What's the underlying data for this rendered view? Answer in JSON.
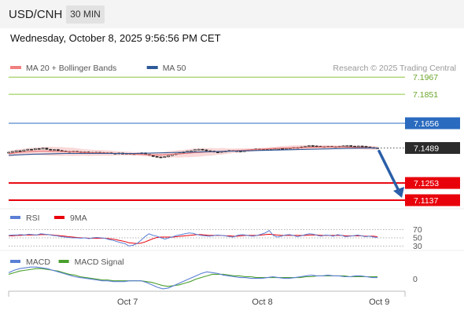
{
  "header": {
    "symbol": "USD/CNH",
    "timeframe": "30 MIN",
    "datetime": "Wednesday, October 8, 2025 9:56:56 PM CET"
  },
  "chart_data": [
    {
      "type": "line",
      "title": "USD/CNH price",
      "legend": [
        {
          "name": "MA 20 + Bollinger Bands",
          "color": "#f08080"
        },
        {
          "name": "MA 50",
          "color": "#2e5a9a"
        }
      ],
      "copyright": "Research © 2025 Trading Central",
      "ylim": [
        7.11,
        7.2
      ],
      "levels": [
        {
          "label": "7.1967",
          "value": 7.1967,
          "kind": "resistance",
          "color": "#8cc63f"
        },
        {
          "label": "7.1851",
          "value": 7.1851,
          "kind": "resistance",
          "color": "#8cc63f"
        },
        {
          "label": "7.1656",
          "value": 7.1656,
          "kind": "pivot",
          "color": "#2a6bbf"
        },
        {
          "label": "7.1489",
          "value": 7.1489,
          "kind": "last",
          "color": "#333333"
        },
        {
          "label": "7.1253",
          "value": 7.1253,
          "kind": "support",
          "color": "#e8000b"
        },
        {
          "label": "7.1137",
          "value": 7.1137,
          "kind": "support",
          "color": "#e8000b"
        }
      ],
      "price_closes": [
        7.146,
        7.1465,
        7.147,
        7.1468,
        7.1475,
        7.148,
        7.1478,
        7.1485,
        7.1482,
        7.1488,
        7.148,
        7.1476,
        7.1478,
        7.1472,
        7.1468,
        7.1465,
        7.1462,
        7.1466,
        7.1463,
        7.146,
        7.1462,
        7.1459,
        7.1456,
        7.146,
        7.1458,
        7.1455,
        7.1457,
        7.1453,
        7.145,
        7.1455,
        7.1448,
        7.1452,
        7.145,
        7.1448,
        7.1452,
        7.1456,
        7.1446,
        7.144,
        7.1432,
        7.1428,
        7.1425,
        7.143,
        7.1438,
        7.1445,
        7.145,
        7.1456,
        7.1462,
        7.1468,
        7.147,
        7.1478,
        7.148,
        7.1476,
        7.147,
        7.1468,
        7.1462,
        7.146,
        7.1465,
        7.1468,
        7.1472,
        7.147,
        7.1468,
        7.1465,
        7.147,
        7.1475,
        7.1478,
        7.1482,
        7.148,
        7.1478,
        7.1476,
        7.1479,
        7.1482,
        7.1485,
        7.148,
        7.1484,
        7.1488,
        7.1492,
        7.149,
        7.1496,
        7.15,
        7.1505,
        7.1502,
        7.15,
        7.1498,
        7.1496,
        7.15,
        7.1498,
        7.1495,
        7.15,
        7.1503,
        7.1505,
        7.1501,
        7.1498,
        7.1502,
        7.15,
        7.1496,
        7.1492,
        7.149,
        7.1489
      ],
      "ma20": [
        7.145,
        7.1455,
        7.146,
        7.1462,
        7.1465,
        7.1467,
        7.1468,
        7.1468,
        7.1467,
        7.1466,
        7.1465,
        7.1464,
        7.1463,
        7.1461,
        7.1459,
        7.1457,
        7.1456,
        7.1456,
        7.1455,
        7.1454,
        7.1453,
        7.1452,
        7.1451,
        7.145,
        7.1448,
        7.1446,
        7.1444,
        7.1442,
        7.1442,
        7.1443,
        7.1445,
        7.1448,
        7.145,
        7.1452,
        7.1455,
        7.1458,
        7.146,
        7.1462,
        7.1463,
        7.1465,
        7.1467,
        7.1468,
        7.147,
        7.1472,
        7.1474,
        7.1476,
        7.1478,
        7.148,
        7.1482,
        7.1484,
        7.1486,
        7.1488,
        7.1489,
        7.149,
        7.1491,
        7.1492,
        7.1493,
        7.1494,
        7.1495,
        7.1496,
        7.1496,
        7.1496,
        7.1496,
        7.1495,
        7.1494,
        7.1493,
        7.1492,
        7.1491,
        7.149,
        7.1489
      ],
      "ma50": [
        7.144,
        7.1442,
        7.1444,
        7.1446,
        7.1447,
        7.1448,
        7.1449,
        7.145,
        7.1451,
        7.1452,
        7.1452,
        7.1452,
        7.1452,
        7.1452,
        7.1452,
        7.1452,
        7.1452,
        7.1452,
        7.1452,
        7.1452,
        7.1452,
        7.1453,
        7.1454,
        7.1455,
        7.1456,
        7.1457,
        7.1458,
        7.1459,
        7.146,
        7.1461,
        7.1462,
        7.1463,
        7.1464,
        7.1465,
        7.1466,
        7.1467,
        7.1468,
        7.1469,
        7.147,
        7.1471,
        7.1472,
        7.1473,
        7.1474,
        7.1475,
        7.1476,
        7.1477,
        7.1478,
        7.1479,
        7.148,
        7.1481,
        7.1482,
        7.1483,
        7.1484,
        7.1485,
        7.1486,
        7.1487,
        7.1488,
        7.1488,
        7.1489,
        7.1489
      ],
      "bollinger_width": [
        0.002,
        0.0022,
        0.0025,
        0.0027,
        0.003,
        0.003,
        0.0028,
        0.0025,
        0.0022,
        0.002,
        0.0018,
        0.0015,
        0.0013,
        0.0012,
        0.0012,
        0.0014,
        0.0018,
        0.0022,
        0.0025,
        0.0028,
        0.0028,
        0.0026,
        0.0022,
        0.0018,
        0.0015,
        0.0012,
        0.001,
        0.001,
        0.0012,
        0.0014,
        0.0016,
        0.0016,
        0.0014,
        0.0012,
        0.001,
        0.001,
        0.0011,
        0.0012,
        0.0013,
        0.0012
      ],
      "forecast_target": 7.1137
    },
    {
      "type": "line",
      "title": "RSI",
      "legend": [
        {
          "name": "RSI",
          "color": "#5b7fd6"
        },
        {
          "name": "9MA",
          "color": "#e8000b"
        }
      ],
      "ylim": [
        25,
        75
      ],
      "ticks": [
        70,
        50,
        30
      ],
      "rsi": [
        56,
        57,
        57,
        58,
        57,
        59,
        58,
        57,
        60,
        59,
        58,
        56,
        55,
        53,
        52,
        51,
        50,
        50,
        49,
        50,
        48,
        50,
        51,
        50,
        49,
        46,
        44,
        41,
        38,
        36,
        30,
        32,
        36,
        44,
        53,
        60,
        56,
        54,
        50,
        47,
        50,
        53,
        56,
        58,
        60,
        62,
        61,
        58,
        56,
        55,
        54,
        55,
        57,
        56,
        55,
        53,
        52,
        56,
        58,
        57,
        55,
        54,
        56,
        59,
        62,
        68,
        56,
        52,
        54,
        57,
        58,
        56,
        53,
        55,
        58,
        60,
        59,
        56,
        54,
        57,
        56,
        54,
        58,
        56,
        53,
        54,
        55,
        57,
        55,
        53,
        54,
        52,
        51
      ],
      "ma9": [
        55,
        55,
        56,
        56,
        57,
        57,
        57,
        57,
        58,
        58,
        58,
        57,
        56,
        55,
        54,
        53,
        52,
        51,
        50,
        50,
        49,
        49,
        49,
        49,
        49,
        48,
        47,
        45,
        43,
        41,
        38,
        37,
        36,
        37,
        40,
        44,
        48,
        51,
        52,
        52,
        52,
        52,
        53,
        54,
        55,
        56,
        57,
        58,
        58,
        57,
        56,
        56,
        56,
        56,
        55,
        55,
        54,
        54,
        55,
        56,
        56,
        56,
        56,
        57,
        58,
        59,
        58,
        57,
        56,
        56,
        56,
        56,
        56,
        56,
        56,
        57,
        57,
        57,
        56,
        56,
        56,
        56,
        56,
        56,
        55,
        55,
        55,
        55,
        55,
        54,
        54,
        54,
        53
      ]
    },
    {
      "type": "line",
      "title": "MACD",
      "legend": [
        {
          "name": "MACD",
          "color": "#5b7fd6"
        },
        {
          "name": "MACD Signal",
          "color": "#4aa02c"
        }
      ],
      "ylim": [
        -0.0014,
        0.002
      ],
      "ticks": [
        0
      ],
      "macd": [
        0.0008,
        0.0011,
        0.0013,
        0.0014,
        0.0015,
        0.0015,
        0.0014,
        0.0013,
        0.0011,
        0.0009,
        0.0007,
        0.0005,
        0.0003,
        0.0002,
        0.0001,
        0.0,
        -0.0001,
        -0.0002,
        -0.0002,
        -0.0003,
        -0.0003,
        -0.0003,
        -0.0002,
        -0.0002,
        -0.0002,
        -0.0004,
        -0.0007,
        -0.001,
        -0.0012,
        -0.0011,
        -0.0008,
        -0.0005,
        -0.0002,
        0.0001,
        0.0004,
        0.0007,
        0.0009,
        0.0008,
        0.0007,
        0.0005,
        0.0004,
        0.0003,
        0.0002,
        0.0002,
        0.0001,
        0.0001,
        0.0001,
        0.0002,
        0.0003,
        0.0002,
        0.0001,
        0.0001,
        0.0002,
        0.0003,
        0.0004,
        0.0005,
        0.0004,
        0.0004,
        0.0005,
        0.0004,
        0.0004,
        0.0003,
        0.0003,
        0.0004,
        0.0004,
        0.0003,
        0.0002,
        0.0002
      ],
      "signal": [
        0.0006,
        0.0008,
        0.001,
        0.0011,
        0.0012,
        0.0013,
        0.0013,
        0.0012,
        0.0011,
        0.001,
        0.0008,
        0.0006,
        0.0005,
        0.0003,
        0.0002,
        0.0001,
        0.0,
        -0.0001,
        -0.0001,
        -0.0002,
        -0.0002,
        -0.0002,
        -0.0002,
        -0.0002,
        -0.0002,
        -0.0003,
        -0.0004,
        -0.0006,
        -0.0008,
        -0.0009,
        -0.0008,
        -0.0007,
        -0.0005,
        -0.0003,
        0.0,
        0.0002,
        0.0004,
        0.0006,
        0.0006,
        0.0006,
        0.0005,
        0.0004,
        0.0004,
        0.0003,
        0.0003,
        0.0002,
        0.0002,
        0.0002,
        0.0002,
        0.0002,
        0.0002,
        0.0002,
        0.0002,
        0.0002,
        0.0003,
        0.0003,
        0.0004,
        0.0004,
        0.0004,
        0.0004,
        0.0004,
        0.0004,
        0.0003,
        0.0003,
        0.0003,
        0.0003,
        0.0003,
        0.0003
      ]
    }
  ],
  "x_axis": {
    "labels": [
      {
        "label": "Oct 7",
        "fraction": 0.3
      },
      {
        "label": "Oct 8",
        "fraction": 0.64
      },
      {
        "label": "Oct 9",
        "fraction": 0.935
      }
    ]
  }
}
